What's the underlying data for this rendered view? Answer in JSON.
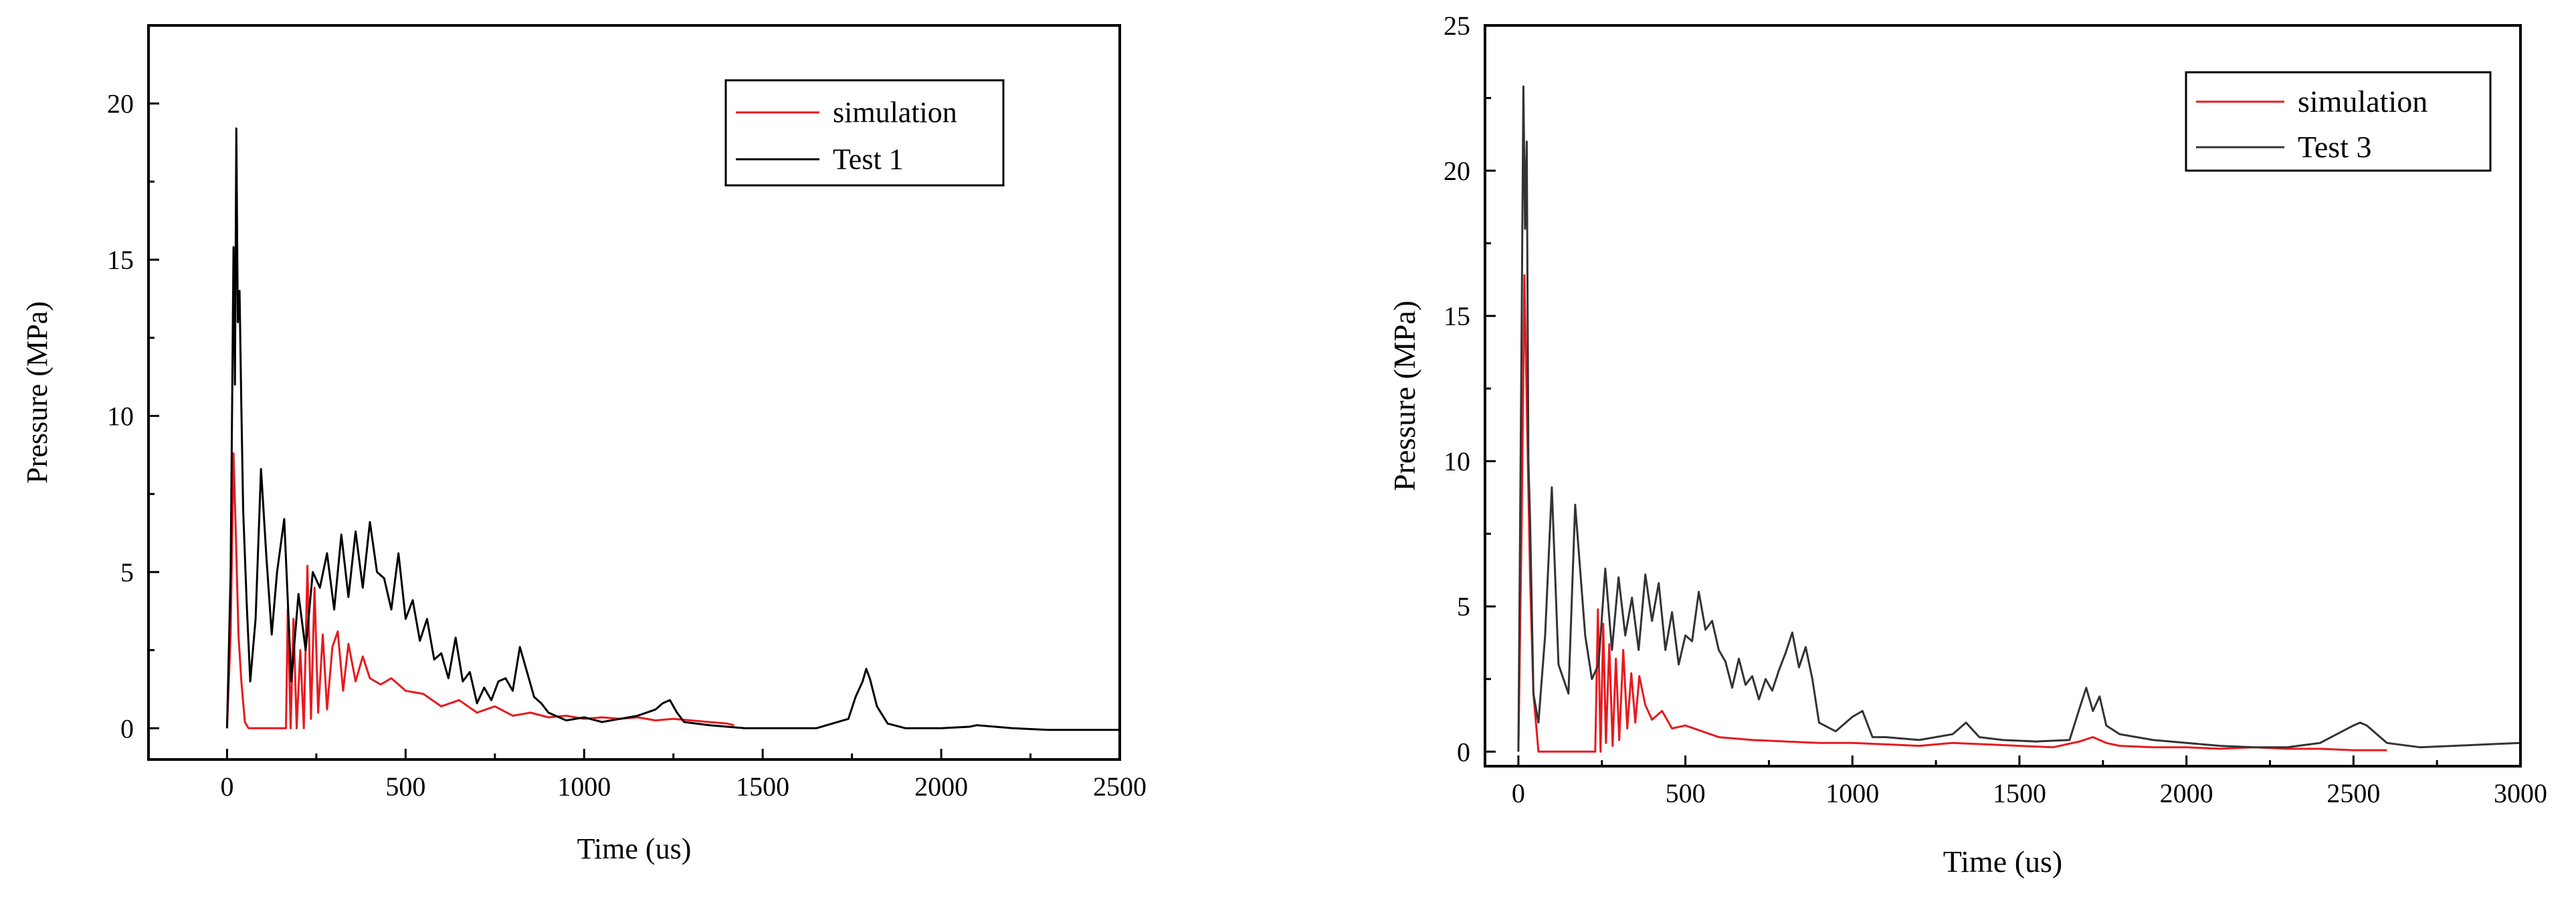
{
  "chart_data": [
    {
      "type": "line",
      "xlabel": "Time (us)",
      "ylabel": "Pressure (MPa)",
      "xlim": [
        -220,
        2500
      ],
      "ylim": [
        -1,
        22.5
      ],
      "xticks": [
        0,
        500,
        1000,
        1500,
        2000,
        2500
      ],
      "xtick_labels": [
        "0",
        "500",
        "1000",
        "1500",
        "2000",
        "2500"
      ],
      "yticks": [
        0,
        5,
        10,
        15,
        20
      ],
      "ytick_labels": [
        "0",
        "5",
        "10",
        "15",
        "20"
      ],
      "legend_position": "top-right",
      "series": [
        {
          "name": "simulation",
          "color": "#e8191f",
          "x": [
            0,
            10,
            18,
            25,
            32,
            40,
            50,
            60,
            100,
            150,
            165,
            170,
            178,
            186,
            195,
            205,
            215,
            225,
            235,
            245,
            255,
            268,
            280,
            295,
            310,
            325,
            340,
            360,
            380,
            400,
            430,
            460,
            500,
            550,
            600,
            650,
            700,
            750,
            800,
            850,
            900,
            950,
            1000,
            1050,
            1100,
            1150,
            1200,
            1250,
            1300,
            1350,
            1400,
            1420
          ],
          "y": [
            0,
            3,
            8.8,
            6,
            3,
            1.5,
            0.2,
            0,
            0,
            0,
            0,
            3.8,
            0,
            3.5,
            0,
            2.5,
            0,
            5.2,
            0.3,
            4.5,
            0.5,
            3,
            0.6,
            2.6,
            3.1,
            1.2,
            2.7,
            1.5,
            2.3,
            1.6,
            1.4,
            1.6,
            1.2,
            1.1,
            0.7,
            0.9,
            0.5,
            0.7,
            0.4,
            0.5,
            0.35,
            0.4,
            0.3,
            0.35,
            0.3,
            0.35,
            0.25,
            0.3,
            0.25,
            0.2,
            0.15,
            0.1
          ]
        },
        {
          "name": "Test 1",
          "color": "#000000",
          "x": [
            0,
            10,
            18,
            22,
            26,
            30,
            35,
            40,
            45,
            55,
            65,
            80,
            95,
            110,
            125,
            140,
            160,
            180,
            200,
            220,
            240,
            260,
            280,
            300,
            320,
            340,
            360,
            380,
            400,
            420,
            440,
            460,
            480,
            500,
            520,
            540,
            560,
            580,
            600,
            620,
            640,
            660,
            680,
            700,
            720,
            740,
            760,
            780,
            800,
            820,
            840,
            860,
            880,
            900,
            950,
            1000,
            1050,
            1100,
            1150,
            1200,
            1220,
            1240,
            1260,
            1280,
            1350,
            1450,
            1550,
            1650,
            1740,
            1760,
            1780,
            1790,
            1800,
            1820,
            1850,
            1900,
            2000,
            2080,
            2100,
            2150,
            2200,
            2300,
            2400,
            2500
          ],
          "y": [
            0,
            5,
            15.4,
            11,
            19.2,
            13,
            14,
            10.3,
            7,
            4,
            1.5,
            3.5,
            8.3,
            5.5,
            3,
            5,
            6.7,
            1.5,
            4.3,
            2.5,
            5,
            4.5,
            5.6,
            3.8,
            6.2,
            4.2,
            6.3,
            4.5,
            6.6,
            5,
            4.8,
            3.8,
            5.6,
            3.5,
            4.1,
            2.8,
            3.5,
            2.2,
            2.4,
            1.6,
            2.9,
            1.5,
            1.8,
            0.8,
            1.3,
            0.9,
            1.5,
            1.6,
            1.2,
            2.6,
            1.8,
            1,
            0.8,
            0.5,
            0.25,
            0.35,
            0.2,
            0.3,
            0.4,
            0.6,
            0.8,
            0.9,
            0.5,
            0.2,
            0.1,
            0,
            0,
            0,
            0.3,
            1,
            1.5,
            1.9,
            1.6,
            0.7,
            0.15,
            0,
            0,
            0.05,
            0.1,
            0.05,
            0,
            -0.05,
            -0.05,
            -0.05
          ]
        }
      ]
    },
    {
      "type": "line",
      "xlabel": "Time (us)",
      "ylabel": "Pressure (MPa)",
      "xlim": [
        -100,
        3000
      ],
      "ylim": [
        -0.5,
        25
      ],
      "xticks": [
        0,
        500,
        1000,
        1500,
        2000,
        2500,
        3000
      ],
      "xtick_labels": [
        "0",
        "500",
        "1000",
        "1500",
        "2000",
        "2500",
        "3000"
      ],
      "yticks": [
        0,
        5,
        10,
        15,
        20,
        25
      ],
      "ytick_labels": [
        "0",
        "5",
        "10",
        "15",
        "20",
        "25"
      ],
      "legend_position": "top-right",
      "series": [
        {
          "name": "simulation",
          "color": "#e8191f",
          "x": [
            0,
            10,
            18,
            25,
            35,
            45,
            60,
            100,
            150,
            200,
            230,
            238,
            246,
            254,
            262,
            272,
            282,
            292,
            302,
            314,
            326,
            338,
            350,
            362,
            380,
            400,
            430,
            460,
            500,
            550,
            600,
            700,
            800,
            900,
            1000,
            1100,
            1200,
            1300,
            1400,
            1500,
            1600,
            1680,
            1720,
            1760,
            1800,
            1900,
            2000,
            2100,
            2200,
            2300,
            2400,
            2500,
            2600
          ],
          "y": [
            0,
            8,
            16.4,
            12,
            6,
            2,
            0,
            0,
            0,
            0,
            0,
            4.9,
            0,
            4.4,
            0.3,
            3.7,
            0.2,
            3.2,
            0.4,
            3.5,
            0.8,
            2.7,
            1,
            2.6,
            1.6,
            1.1,
            1.4,
            0.8,
            0.9,
            0.7,
            0.5,
            0.4,
            0.35,
            0.3,
            0.3,
            0.25,
            0.2,
            0.3,
            0.25,
            0.2,
            0.15,
            0.35,
            0.5,
            0.3,
            0.2,
            0.15,
            0.15,
            0.1,
            0.15,
            0.1,
            0.1,
            0.05,
            0.05
          ]
        },
        {
          "name": "Test 3",
          "color": "#333333",
          "x": [
            0,
            10,
            15,
            20,
            25,
            30,
            35,
            45,
            60,
            80,
            100,
            120,
            150,
            170,
            200,
            220,
            240,
            260,
            280,
            300,
            320,
            340,
            360,
            380,
            400,
            420,
            440,
            460,
            480,
            500,
            520,
            540,
            560,
            580,
            600,
            620,
            640,
            660,
            680,
            700,
            720,
            740,
            760,
            780,
            800,
            820,
            840,
            860,
            880,
            900,
            950,
            1000,
            1030,
            1060,
            1100,
            1200,
            1300,
            1340,
            1380,
            1450,
            1550,
            1650,
            1680,
            1700,
            1720,
            1740,
            1760,
            1800,
            1900,
            2000,
            2100,
            2200,
            2300,
            2400,
            2450,
            2500,
            2520,
            2540,
            2560,
            2600,
            2700,
            2800,
            2900,
            3000
          ],
          "y": [
            0,
            15,
            22.9,
            18,
            21,
            10,
            8,
            2,
            1,
            4,
            9.1,
            3,
            2,
            8.5,
            4,
            2.5,
            3,
            6.3,
            3.5,
            6,
            4,
            5.3,
            3.5,
            6.1,
            4.5,
            5.8,
            3.5,
            4.8,
            3,
            4,
            3.8,
            5.5,
            4.2,
            4.5,
            3.5,
            3.1,
            2.2,
            3.2,
            2.3,
            2.6,
            1.8,
            2.5,
            2.1,
            2.8,
            3.4,
            4.1,
            2.9,
            3.6,
            2.5,
            1,
            0.7,
            1.2,
            1.4,
            0.5,
            0.5,
            0.4,
            0.6,
            1,
            0.5,
            0.4,
            0.35,
            0.4,
            1.5,
            2.2,
            1.4,
            1.9,
            0.9,
            0.6,
            0.4,
            0.3,
            0.2,
            0.15,
            0.15,
            0.3,
            0.6,
            0.9,
            1,
            0.9,
            0.7,
            0.3,
            0.15,
            0.2,
            0.25,
            0.3
          ]
        }
      ]
    }
  ]
}
